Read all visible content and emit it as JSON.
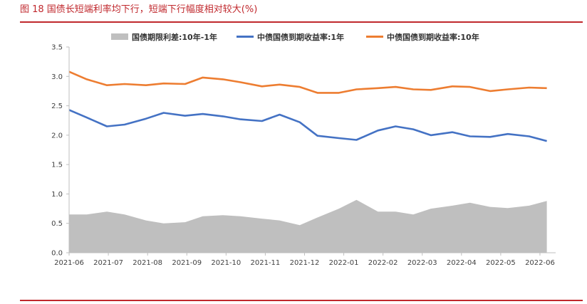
{
  "figure": {
    "title": "图 18   国债长短端利率均下行，短端下行幅度相对较大(%)"
  },
  "colors": {
    "accent": "#c0282d",
    "spread": "#bfbfbf",
    "yield_1y": "#4472c4",
    "yield_10y": "#ed7d31",
    "axis": "#bfbfbf"
  },
  "chart_data": {
    "type": "line",
    "ylim": [
      0.0,
      3.5
    ],
    "yticks": [
      "0.0",
      "0.5",
      "1.0",
      "1.5",
      "2.0",
      "2.5",
      "3.0",
      "3.5"
    ],
    "xlabels": [
      "2021-06",
      "2021-07",
      "2021-08",
      "2021-09",
      "2021-10",
      "2021-11",
      "2021-12",
      "2022-01",
      "2022-02",
      "2022-03",
      "2022-04",
      "2022-05",
      "2022-06"
    ],
    "grid": false,
    "legend_position": "top",
    "x": [
      "2021-06-01",
      "2021-06-15",
      "2021-07-01",
      "2021-07-15",
      "2021-08-01",
      "2021-08-15",
      "2021-09-01",
      "2021-09-15",
      "2021-10-01",
      "2021-10-15",
      "2021-11-01",
      "2021-11-15",
      "2021-12-01",
      "2021-12-15",
      "2022-01-01",
      "2022-01-15",
      "2022-02-01",
      "2022-02-15",
      "2022-03-01",
      "2022-03-15",
      "2022-04-01",
      "2022-04-15",
      "2022-05-01",
      "2022-05-15",
      "2022-06-01",
      "2022-06-15"
    ],
    "series": [
      {
        "name": "国债期限利差:10年-1年",
        "kind": "area",
        "values": [
          0.65,
          0.65,
          0.7,
          0.65,
          0.55,
          0.5,
          0.52,
          0.62,
          0.64,
          0.62,
          0.58,
          0.55,
          0.47,
          0.6,
          0.75,
          0.9,
          0.7,
          0.7,
          0.65,
          0.75,
          0.8,
          0.85,
          0.78,
          0.76,
          0.8,
          0.88
        ]
      },
      {
        "name": "中债国债到期收益率:1年",
        "kind": "line",
        "values": [
          2.43,
          2.3,
          2.15,
          2.18,
          2.28,
          2.38,
          2.33,
          2.36,
          2.32,
          2.27,
          2.24,
          2.35,
          2.22,
          1.99,
          1.95,
          1.92,
          2.08,
          2.15,
          2.1,
          2.0,
          2.05,
          1.98,
          1.97,
          2.02,
          1.98,
          1.9
        ]
      },
      {
        "name": "中债国债到期收益率:10年",
        "kind": "line",
        "values": [
          3.08,
          2.95,
          2.85,
          2.87,
          2.85,
          2.88,
          2.87,
          2.98,
          2.95,
          2.9,
          2.83,
          2.86,
          2.82,
          2.72,
          2.72,
          2.78,
          2.8,
          2.82,
          2.78,
          2.77,
          2.83,
          2.82,
          2.75,
          2.78,
          2.81,
          2.8
        ]
      }
    ]
  }
}
